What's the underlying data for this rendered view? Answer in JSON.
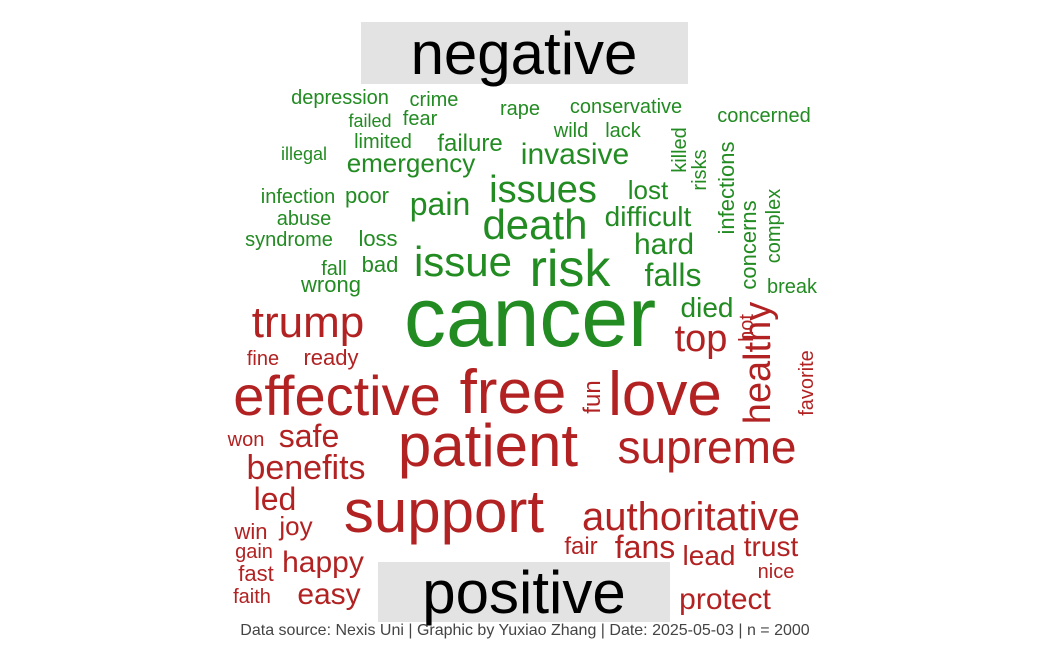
{
  "chart_data": {
    "type": "wordcloud",
    "colors": {
      "negative": "#228b22",
      "positive": "#b22222"
    },
    "groups": [
      {
        "label": "negative",
        "color_key": "negative"
      },
      {
        "label": "positive",
        "color_key": "positive"
      }
    ],
    "words": [
      {
        "text": "cancer",
        "group": "negative"
      },
      {
        "text": "risk",
        "group": "negative"
      },
      {
        "text": "death",
        "group": "negative"
      },
      {
        "text": "issue",
        "group": "negative"
      },
      {
        "text": "issues",
        "group": "negative"
      },
      {
        "text": "invasive",
        "group": "negative"
      },
      {
        "text": "emergency",
        "group": "negative"
      },
      {
        "text": "pain",
        "group": "negative"
      },
      {
        "text": "hard",
        "group": "negative"
      },
      {
        "text": "falls",
        "group": "negative"
      },
      {
        "text": "difficult",
        "group": "negative"
      },
      {
        "text": "lost",
        "group": "negative"
      },
      {
        "text": "failure",
        "group": "negative"
      },
      {
        "text": "depression",
        "group": "negative"
      },
      {
        "text": "crime",
        "group": "negative"
      },
      {
        "text": "rape",
        "group": "negative"
      },
      {
        "text": "conservative",
        "group": "negative"
      },
      {
        "text": "concerned",
        "group": "negative"
      },
      {
        "text": "failed",
        "group": "negative"
      },
      {
        "text": "fear",
        "group": "negative"
      },
      {
        "text": "wild",
        "group": "negative"
      },
      {
        "text": "lack",
        "group": "negative"
      },
      {
        "text": "limited",
        "group": "negative"
      },
      {
        "text": "illegal",
        "group": "negative"
      },
      {
        "text": "killed",
        "group": "negative"
      },
      {
        "text": "risks",
        "group": "negative"
      },
      {
        "text": "infections",
        "group": "negative"
      },
      {
        "text": "infection",
        "group": "negative"
      },
      {
        "text": "poor",
        "group": "negative"
      },
      {
        "text": "abuse",
        "group": "negative"
      },
      {
        "text": "syndrome",
        "group": "negative"
      },
      {
        "text": "loss",
        "group": "negative"
      },
      {
        "text": "bad",
        "group": "negative"
      },
      {
        "text": "fall",
        "group": "negative"
      },
      {
        "text": "wrong",
        "group": "negative"
      },
      {
        "text": "concerns",
        "group": "negative"
      },
      {
        "text": "complex",
        "group": "negative"
      },
      {
        "text": "break",
        "group": "negative"
      },
      {
        "text": "patient",
        "group": "positive"
      },
      {
        "text": "free",
        "group": "positive"
      },
      {
        "text": "love",
        "group": "positive"
      },
      {
        "text": "support",
        "group": "positive"
      },
      {
        "text": "effective",
        "group": "positive"
      },
      {
        "text": "supreme",
        "group": "positive"
      },
      {
        "text": "authoritative",
        "group": "positive"
      },
      {
        "text": "trump",
        "group": "positive"
      },
      {
        "text": "top",
        "group": "positive"
      },
      {
        "text": "healthy",
        "group": "positive"
      },
      {
        "text": "benefits",
        "group": "positive"
      },
      {
        "text": "safe",
        "group": "positive"
      },
      {
        "text": "fans",
        "group": "positive"
      },
      {
        "text": "happy",
        "group": "positive"
      },
      {
        "text": "protect",
        "group": "positive"
      },
      {
        "text": "trust",
        "group": "positive"
      },
      {
        "text": "led",
        "group": "positive"
      },
      {
        "text": "lead",
        "group": "positive"
      },
      {
        "text": "easy",
        "group": "positive"
      },
      {
        "text": "died",
        "group": "negative"
      },
      {
        "text": "fun",
        "group": "positive"
      },
      {
        "text": "joy",
        "group": "positive"
      },
      {
        "text": "fair",
        "group": "positive"
      },
      {
        "text": "ready",
        "group": "positive"
      },
      {
        "text": "fine",
        "group": "positive"
      },
      {
        "text": "hot",
        "group": "positive"
      },
      {
        "text": "favorite",
        "group": "positive"
      },
      {
        "text": "won",
        "group": "positive"
      },
      {
        "text": "win",
        "group": "positive"
      },
      {
        "text": "gain",
        "group": "positive"
      },
      {
        "text": "fast",
        "group": "positive"
      },
      {
        "text": "faith",
        "group": "positive"
      },
      {
        "text": "nice",
        "group": "positive"
      }
    ]
  },
  "caption": "Data source: Nexis Uni | Graphic by Yuxiao Zhang | Date: 2025-05-03 | n = 2000"
}
